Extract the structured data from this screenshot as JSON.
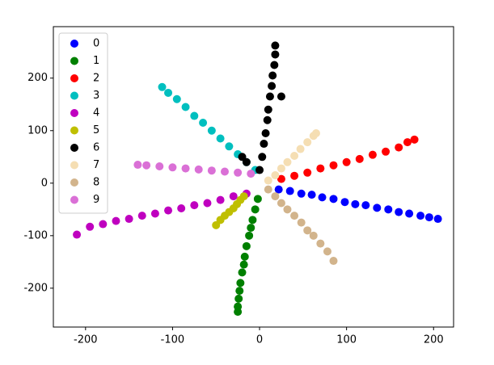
{
  "chart_data": {
    "type": "scatter",
    "xlim": [
      -237,
      223
    ],
    "ylim": [
      -274,
      298
    ],
    "xticks": [
      -200,
      -100,
      0,
      100,
      200
    ],
    "yticks": [
      -200,
      -100,
      0,
      100,
      200
    ],
    "legend": "upper left",
    "series": [
      {
        "name": "0",
        "color": "#0000ff",
        "x": [
          22,
          35,
          48,
          60,
          72,
          85,
          98,
          110,
          122,
          135,
          148,
          160,
          172,
          185,
          195,
          205
        ],
        "y": [
          -12,
          -15,
          -20,
          -22,
          -27,
          -30,
          -36,
          -40,
          -42,
          -47,
          -50,
          -55,
          -58,
          -62,
          -65,
          -68
        ]
      },
      {
        "name": "1",
        "color": "#008000",
        "x": [
          -2,
          -5,
          -8,
          -10,
          -12,
          -15,
          -17,
          -18,
          -20,
          -22,
          -23,
          -24,
          -25,
          -25
        ],
        "y": [
          -30,
          -50,
          -70,
          -85,
          -100,
          -120,
          -140,
          -155,
          -170,
          -190,
          -205,
          -220,
          -235,
          -245
        ]
      },
      {
        "name": "2",
        "color": "#ff0000",
        "x": [
          25,
          40,
          55,
          70,
          85,
          100,
          115,
          130,
          145,
          160,
          170,
          178
        ],
        "y": [
          8,
          14,
          20,
          28,
          34,
          40,
          46,
          54,
          60,
          68,
          78,
          83
        ]
      },
      {
        "name": "3",
        "color": "#00bfbf",
        "x": [
          -5,
          -15,
          -25,
          -35,
          -45,
          -55,
          -65,
          -75,
          -85,
          -95,
          -105,
          -112
        ],
        "y": [
          25,
          40,
          55,
          70,
          85,
          100,
          115,
          128,
          145,
          160,
          172,
          183
        ]
      },
      {
        "name": "4",
        "color": "#bf00bf",
        "x": [
          -15,
          -30,
          -45,
          -60,
          -75,
          -90,
          -105,
          -120,
          -135,
          -150,
          -165,
          -180,
          -195,
          -210
        ],
        "y": [
          -20,
          -25,
          -32,
          -38,
          -42,
          -48,
          -52,
          -58,
          -62,
          -68,
          -72,
          -78,
          -83,
          -98
        ]
      },
      {
        "name": "5",
        "color": "#bfbf00",
        "x": [
          -18,
          -22,
          -26,
          -30,
          -35,
          -40,
          -45,
          -50
        ],
        "y": [
          -25,
          -32,
          -40,
          -48,
          -55,
          -62,
          -70,
          -80
        ]
      },
      {
        "name": "6",
        "color": "#000000",
        "x": [
          0,
          3,
          5,
          7,
          9,
          10,
          12,
          14,
          15,
          17,
          18,
          18,
          -15,
          -20,
          25
        ],
        "y": [
          25,
          50,
          75,
          95,
          120,
          140,
          165,
          185,
          205,
          225,
          245,
          262,
          40,
          50,
          165
        ]
      },
      {
        "name": "7",
        "color": "#f5deb3",
        "x": [
          10,
          18,
          25,
          32,
          40,
          47,
          55,
          62,
          65
        ],
        "y": [
          5,
          15,
          28,
          40,
          52,
          65,
          78,
          90,
          95
        ]
      },
      {
        "name": "8",
        "color": "#d2b48c",
        "x": [
          10,
          18,
          25,
          32,
          40,
          48,
          55,
          62,
          70,
          78,
          85
        ],
        "y": [
          -12,
          -25,
          -38,
          -50,
          -62,
          -75,
          -90,
          -100,
          -115,
          -130,
          -148
        ]
      },
      {
        "name": "9",
        "color": "#da70d6",
        "x": [
          -10,
          -25,
          -40,
          -55,
          -70,
          -85,
          -100,
          -115,
          -130,
          -140
        ],
        "y": [
          18,
          20,
          22,
          24,
          26,
          28,
          30,
          32,
          34,
          35
        ]
      }
    ]
  }
}
